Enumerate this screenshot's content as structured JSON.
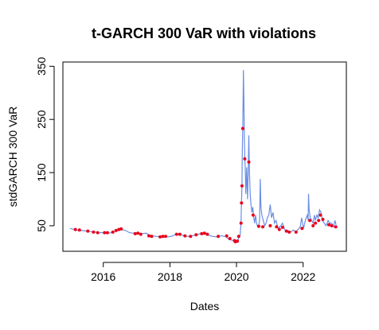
{
  "chart_data": {
    "type": "line",
    "title": "t-GARCH 300 VaR with violations",
    "xlabel": "Dates",
    "ylabel": "stdGARCH 300 VaR",
    "xlim": [
      "2014-10-15",
      "2023-04-20"
    ],
    "ylim": [
      2,
      358
    ],
    "x_ticks": [
      "2016",
      "2018",
      "2020",
      "2022"
    ],
    "y_ticks": [
      50,
      150,
      250,
      350
    ],
    "grid": false,
    "line_color": "#6b8ee3",
    "violation_color": "#e8001c",
    "series": [
      {
        "type": "line",
        "points": [
          [
            "2015-01-01",
            45
          ],
          [
            "2015-02-15",
            43
          ],
          [
            "2015-04-01",
            41
          ],
          [
            "2015-05-15",
            41
          ],
          [
            "2015-07-01",
            40
          ],
          [
            "2015-08-15",
            39
          ],
          [
            "2015-10-01",
            38
          ],
          [
            "2015-11-15",
            37
          ],
          [
            "2016-01-01",
            37
          ],
          [
            "2016-02-15",
            36
          ],
          [
            "2016-04-01",
            37
          ],
          [
            "2016-05-15",
            40
          ],
          [
            "2016-06-20",
            43
          ],
          [
            "2016-07-20",
            43
          ],
          [
            "2016-09-01",
            41
          ],
          [
            "2016-10-15",
            37
          ],
          [
            "2016-12-01",
            36
          ],
          [
            "2017-01-15",
            36
          ],
          [
            "2017-03-01",
            35
          ],
          [
            "2017-04-15",
            36
          ],
          [
            "2017-05-15",
            33
          ],
          [
            "2017-06-20",
            31
          ],
          [
            "2017-08-01",
            30
          ],
          [
            "2017-09-15",
            29
          ],
          [
            "2017-11-01",
            30
          ],
          [
            "2017-12-15",
            29
          ],
          [
            "2018-02-01",
            31
          ],
          [
            "2018-03-15",
            35
          ],
          [
            "2018-04-20",
            34
          ],
          [
            "2018-06-01",
            31
          ],
          [
            "2018-07-15",
            30
          ],
          [
            "2018-09-01",
            31
          ],
          [
            "2018-10-15",
            33
          ],
          [
            "2018-12-01",
            35
          ],
          [
            "2019-01-15",
            36
          ],
          [
            "2019-03-01",
            32
          ],
          [
            "2019-04-15",
            30
          ],
          [
            "2019-06-01",
            29
          ],
          [
            "2019-07-15",
            31
          ],
          [
            "2019-09-01",
            30
          ],
          [
            "2019-10-15",
            24
          ],
          [
            "2019-12-01",
            22
          ],
          [
            "2019-12-20",
            18
          ],
          [
            "2020-01-10",
            20
          ],
          [
            "2020-01-25",
            27
          ],
          [
            "2020-02-10",
            32
          ],
          [
            "2020-02-20",
            55
          ],
          [
            "2020-02-25",
            95
          ],
          [
            "2020-03-01",
            125
          ],
          [
            "2020-03-05",
            190
          ],
          [
            "2020-03-10",
            235
          ],
          [
            "2020-03-14",
            300
          ],
          [
            "2020-03-17",
            343
          ],
          [
            "2020-03-22",
            290
          ],
          [
            "2020-03-27",
            215
          ],
          [
            "2020-04-01",
            180
          ],
          [
            "2020-04-07",
            155
          ],
          [
            "2020-04-12",
            110
          ],
          [
            "2020-04-17",
            130
          ],
          [
            "2020-04-22",
            160
          ],
          [
            "2020-05-01",
            100
          ],
          [
            "2020-05-08",
            150
          ],
          [
            "2020-05-15",
            220
          ],
          [
            "2020-05-22",
            150
          ],
          [
            "2020-05-30",
            110
          ],
          [
            "2020-06-08",
            90
          ],
          [
            "2020-06-18",
            75
          ],
          [
            "2020-06-28",
            85
          ],
          [
            "2020-07-08",
            65
          ],
          [
            "2020-07-18",
            55
          ],
          [
            "2020-07-28",
            70
          ],
          [
            "2020-08-08",
            55
          ],
          [
            "2020-08-20",
            48
          ],
          [
            "2020-09-01",
            50
          ],
          [
            "2020-09-10",
            60
          ],
          [
            "2020-09-18",
            138
          ],
          [
            "2020-09-25",
            85
          ],
          [
            "2020-10-05",
            70
          ],
          [
            "2020-10-20",
            60
          ],
          [
            "2020-11-05",
            50
          ],
          [
            "2020-11-20",
            55
          ],
          [
            "2020-12-05",
            65
          ],
          [
            "2020-12-20",
            70
          ],
          [
            "2021-01-05",
            90
          ],
          [
            "2021-01-20",
            65
          ],
          [
            "2021-02-05",
            75
          ],
          [
            "2021-02-20",
            55
          ],
          [
            "2021-03-10",
            60
          ],
          [
            "2021-04-01",
            45
          ],
          [
            "2021-05-01",
            50
          ],
          [
            "2021-05-20",
            55
          ],
          [
            "2021-06-15",
            42
          ],
          [
            "2021-07-15",
            40
          ],
          [
            "2021-08-15",
            38
          ],
          [
            "2021-09-15",
            42
          ],
          [
            "2021-10-15",
            38
          ],
          [
            "2021-11-15",
            45
          ],
          [
            "2021-12-01",
            48
          ],
          [
            "2021-12-15",
            65
          ],
          [
            "2022-01-05",
            45
          ],
          [
            "2022-01-25",
            60
          ],
          [
            "2022-02-15",
            70
          ],
          [
            "2022-02-25",
            60
          ],
          [
            "2022-03-01",
            110
          ],
          [
            "2022-03-08",
            80
          ],
          [
            "2022-03-20",
            65
          ],
          [
            "2022-04-05",
            60
          ],
          [
            "2022-04-20",
            55
          ],
          [
            "2022-05-05",
            70
          ],
          [
            "2022-05-15",
            60
          ],
          [
            "2022-06-01",
            70
          ],
          [
            "2022-06-15",
            65
          ],
          [
            "2022-07-01",
            80
          ],
          [
            "2022-07-15",
            75
          ],
          [
            "2022-08-01",
            60
          ],
          [
            "2022-08-20",
            55
          ],
          [
            "2022-09-10",
            50
          ],
          [
            "2022-10-01",
            60
          ],
          [
            "2022-10-20",
            55
          ],
          [
            "2022-11-10",
            55
          ],
          [
            "2022-12-01",
            48
          ],
          [
            "2022-12-15",
            60
          ],
          [
            "2022-12-28",
            52
          ]
        ]
      },
      {
        "type": "violations",
        "points": [
          [
            "2015-03-01",
            43
          ],
          [
            "2015-04-15",
            42
          ],
          [
            "2015-07-15",
            40
          ],
          [
            "2015-09-15",
            38
          ],
          [
            "2015-11-01",
            37
          ],
          [
            "2016-01-15",
            37
          ],
          [
            "2016-02-15",
            37
          ],
          [
            "2016-04-15",
            38
          ],
          [
            "2016-05-20",
            41
          ],
          [
            "2016-06-20",
            43
          ],
          [
            "2016-07-15",
            44
          ],
          [
            "2016-12-15",
            35
          ],
          [
            "2017-01-15",
            36
          ],
          [
            "2017-02-15",
            34
          ],
          [
            "2017-05-15",
            31
          ],
          [
            "2017-06-15",
            30
          ],
          [
            "2017-09-15",
            29
          ],
          [
            "2017-10-15",
            30
          ],
          [
            "2017-11-15",
            30
          ],
          [
            "2018-03-15",
            34
          ],
          [
            "2018-04-20",
            34
          ],
          [
            "2018-06-15",
            31
          ],
          [
            "2018-08-15",
            30
          ],
          [
            "2018-10-15",
            33
          ],
          [
            "2018-12-15",
            35
          ],
          [
            "2019-01-15",
            36
          ],
          [
            "2019-02-15",
            34
          ],
          [
            "2019-06-15",
            30
          ],
          [
            "2019-09-15",
            31
          ],
          [
            "2019-10-20",
            26
          ],
          [
            "2019-12-10",
            22
          ],
          [
            "2019-12-20",
            20
          ],
          [
            "2020-01-10",
            21
          ],
          [
            "2020-01-25",
            30
          ],
          [
            "2020-02-20",
            55
          ],
          [
            "2020-02-25",
            93
          ],
          [
            "2020-03-01",
            125
          ],
          [
            "2020-03-10",
            233
          ],
          [
            "2020-04-01",
            176
          ],
          [
            "2020-05-15",
            170
          ],
          [
            "2020-07-01",
            70
          ],
          [
            "2020-09-01",
            49
          ],
          [
            "2020-10-15",
            48
          ],
          [
            "2021-01-05",
            50
          ],
          [
            "2021-03-15",
            48
          ],
          [
            "2021-04-15",
            43
          ],
          [
            "2021-05-20",
            47
          ],
          [
            "2021-07-01",
            40
          ],
          [
            "2021-08-01",
            38
          ],
          [
            "2021-10-15",
            38
          ],
          [
            "2021-12-20",
            45
          ],
          [
            "2022-03-15",
            60
          ],
          [
            "2022-04-20",
            50
          ],
          [
            "2022-05-15",
            55
          ],
          [
            "2022-06-20",
            60
          ],
          [
            "2022-07-10",
            70
          ],
          [
            "2022-08-05",
            62
          ],
          [
            "2022-10-10",
            52
          ],
          [
            "2022-11-10",
            50
          ],
          [
            "2022-12-25",
            48
          ]
        ]
      }
    ]
  }
}
